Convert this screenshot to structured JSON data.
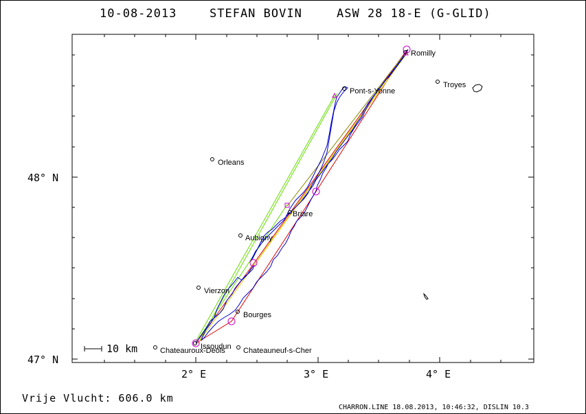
{
  "header": {
    "date": "10-08-2013",
    "pilot": "STEFAN BOVIN",
    "glider": "ASW 28 18-E (G-GLID)"
  },
  "axes": {
    "y_labels": [
      "48° N",
      "47° N"
    ],
    "x_labels": [
      "2° E",
      "3° E",
      "4° E"
    ]
  },
  "scale": {
    "label": "10 km"
  },
  "cities": [
    {
      "name": "Romilly"
    },
    {
      "name": "Troyes"
    },
    {
      "name": "Pont-s-Yonne"
    },
    {
      "name": "Orleans"
    },
    {
      "name": "Briare"
    },
    {
      "name": "Aubigny"
    },
    {
      "name": "Vierzon"
    },
    {
      "name": "Bourges"
    },
    {
      "name": "Issoudun"
    },
    {
      "name": "Chateauroux-Deols"
    },
    {
      "name": "Chateauneuf-s-Cher"
    }
  ],
  "footer": {
    "distance": "Vrije Vlucht:  606.0 km",
    "info": "CHARRON.LINE 18.08.2013, 10:46:32, DISLIN 10.3"
  },
  "colors": {
    "track": "#0000cc",
    "turnpoint": "#cc00cc",
    "line_red": "#e00000",
    "line_green": "#66dd00",
    "line_yellow": "#ddcc00",
    "line_olive": "#888800"
  }
}
